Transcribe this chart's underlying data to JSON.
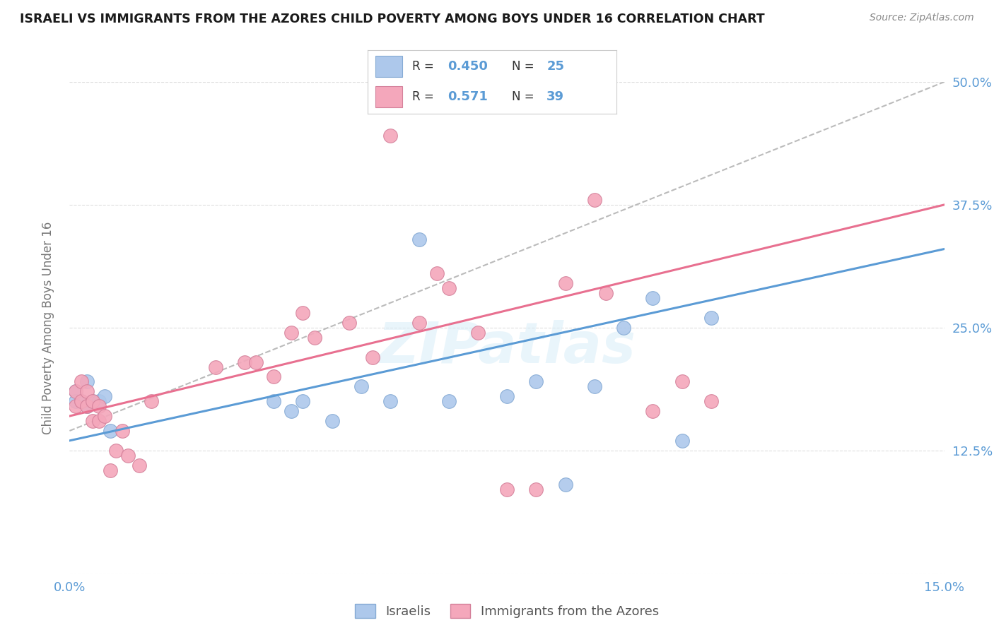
{
  "title": "ISRAELI VS IMMIGRANTS FROM THE AZORES CHILD POVERTY AMONG BOYS UNDER 16 CORRELATION CHART",
  "source": "Source: ZipAtlas.com",
  "ylabel": "Child Poverty Among Boys Under 16",
  "xlim": [
    0.0,
    0.15
  ],
  "ylim": [
    0.0,
    0.5
  ],
  "xticks": [
    0.0,
    0.03,
    0.06,
    0.09,
    0.12,
    0.15
  ],
  "xticklabels": [
    "0.0%",
    "",
    "",
    "",
    "",
    "15.0%"
  ],
  "yticks": [
    0.0,
    0.125,
    0.25,
    0.375,
    0.5
  ],
  "yticklabels": [
    "",
    "12.5%",
    "25.0%",
    "37.5%",
    "50.0%"
  ],
  "background_color": "#ffffff",
  "grid_color": "#dddddd",
  "title_color": "#1a1a1a",
  "axis_color": "#5b9bd5",
  "watermark": "ZIPatlas",
  "israelis_color": "#adc8eb",
  "israelis_edge": "#85aad4",
  "azores_color": "#f4a7bb",
  "azores_edge": "#d4809a",
  "R_israelis": 0.45,
  "N_israelis": 25,
  "R_azores": 0.571,
  "N_azores": 39,
  "israelis_x": [
    0.001,
    0.001,
    0.002,
    0.003,
    0.003,
    0.004,
    0.005,
    0.006,
    0.007,
    0.035,
    0.038,
    0.04,
    0.045,
    0.05,
    0.055,
    0.06,
    0.065,
    0.075,
    0.08,
    0.085,
    0.09,
    0.095,
    0.1,
    0.105,
    0.11
  ],
  "israelis_y": [
    0.185,
    0.175,
    0.175,
    0.195,
    0.17,
    0.175,
    0.175,
    0.18,
    0.145,
    0.175,
    0.165,
    0.175,
    0.155,
    0.19,
    0.175,
    0.34,
    0.175,
    0.18,
    0.195,
    0.09,
    0.19,
    0.25,
    0.28,
    0.135,
    0.26
  ],
  "azores_x": [
    0.001,
    0.001,
    0.002,
    0.002,
    0.003,
    0.003,
    0.004,
    0.004,
    0.005,
    0.005,
    0.006,
    0.007,
    0.008,
    0.009,
    0.01,
    0.012,
    0.014,
    0.025,
    0.03,
    0.032,
    0.035,
    0.038,
    0.04,
    0.042,
    0.048,
    0.052,
    0.055,
    0.06,
    0.063,
    0.065,
    0.07,
    0.075,
    0.08,
    0.085,
    0.09,
    0.092,
    0.1,
    0.105,
    0.11
  ],
  "azores_y": [
    0.185,
    0.17,
    0.195,
    0.175,
    0.185,
    0.17,
    0.175,
    0.155,
    0.17,
    0.155,
    0.16,
    0.105,
    0.125,
    0.145,
    0.12,
    0.11,
    0.175,
    0.21,
    0.215,
    0.215,
    0.2,
    0.245,
    0.265,
    0.24,
    0.255,
    0.22,
    0.445,
    0.255,
    0.305,
    0.29,
    0.245,
    0.085,
    0.085,
    0.295,
    0.38,
    0.285,
    0.165,
    0.195,
    0.175
  ],
  "isr_line_x": [
    0.0,
    0.15
  ],
  "isr_line_y": [
    0.135,
    0.33
  ],
  "az_line_x": [
    0.0,
    0.15
  ],
  "az_line_y": [
    0.16,
    0.375
  ],
  "dash_line_x": [
    0.0,
    0.15
  ],
  "dash_line_y": [
    0.145,
    0.5
  ]
}
